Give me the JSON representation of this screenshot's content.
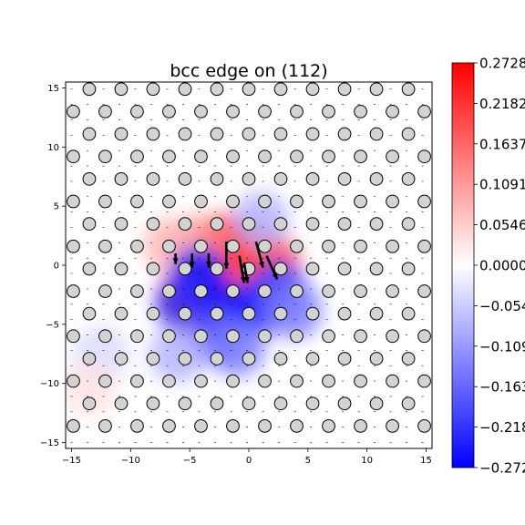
{
  "chart_data": {
    "type": "heatmap",
    "title": "bcc edge on (112)",
    "xlabel": "",
    "ylabel": "",
    "xlim": [
      -15.5,
      15.5
    ],
    "ylim": [
      -15.5,
      15.5
    ],
    "xticks": [
      "−15",
      "−10",
      "−5",
      "0",
      "5",
      "10",
      "15"
    ],
    "xtick_values": [
      -15,
      -10,
      -5,
      0,
      5,
      10,
      15
    ],
    "yticks": [
      "15",
      "10",
      "5",
      "0",
      "−5",
      "−10",
      "−15"
    ],
    "ytick_values": [
      15,
      10,
      5,
      0,
      -5,
      -10,
      -15
    ],
    "colorbar": {
      "colormap": "bwr",
      "min": -0.2728,
      "max": 0.2728,
      "tick_labels": [
        "0.2728",
        "0.2182",
        "0.1637",
        "0.1091",
        "0.0546",
        "0.0000",
        "−0.0546",
        "−0.1091",
        "−0.1637",
        "−0.2182",
        "−0.2728"
      ],
      "tick_values": [
        0.2728,
        0.2182,
        0.1637,
        0.1091,
        0.0546,
        0.0,
        -0.0546,
        -0.1091,
        -0.1637,
        -0.2182,
        -0.2728
      ]
    },
    "atoms": {
      "description": "triangular lattice of atom sites drawn as grey circles",
      "row_spacing": 1.9,
      "column_spacing": 2.7,
      "row_offset_per_row": 1.35,
      "fill": "#d3d3d3",
      "edge": "#000000"
    },
    "displacement_field": [
      {
        "x": -1.8,
        "y": 2.0,
        "value": 0.27
      },
      {
        "x": 0.5,
        "y": 1.2,
        "value": 0.24
      },
      {
        "x": 2.0,
        "y": 0.2,
        "value": 0.18
      },
      {
        "x": -0.8,
        "y": -1.0,
        "value": 0.2
      },
      {
        "x": -4.2,
        "y": 1.8,
        "value": 0.12
      },
      {
        "x": -6.5,
        "y": 1.6,
        "value": 0.08
      },
      {
        "x": -4.8,
        "y": -4.0,
        "value": 0.27
      },
      {
        "x": -5.4,
        "y": -2.8,
        "value": 0.22
      },
      {
        "x": -4.3,
        "y": -0.8,
        "value": -0.27
      },
      {
        "x": -5.5,
        "y": -3.3,
        "value": -0.22
      },
      {
        "x": -2.0,
        "y": -3.8,
        "value": -0.27
      },
      {
        "x": 0.8,
        "y": -3.5,
        "value": -0.25
      },
      {
        "x": 2.5,
        "y": -2.0,
        "value": -0.2
      },
      {
        "x": -3.0,
        "y": -6.0,
        "value": -0.18
      },
      {
        "x": -1.0,
        "y": -7.0,
        "value": -0.14
      },
      {
        "x": 3.8,
        "y": -3.8,
        "value": -0.14
      },
      {
        "x": -6.0,
        "y": -7.5,
        "value": -0.08
      },
      {
        "x": 1.0,
        "y": 3.8,
        "value": -0.08
      },
      {
        "x": -12.5,
        "y": -7.5,
        "value": -0.04
      },
      {
        "x": -13.5,
        "y": -10.5,
        "value": 0.03
      }
    ],
    "arrows": [
      {
        "x": -1.9,
        "y": 2.0,
        "dx": 0.0,
        "dy": -2.3
      },
      {
        "x": -0.8,
        "y": 0.8,
        "dx": 0.4,
        "dy": -2.3
      },
      {
        "x": 0.6,
        "y": 2.0,
        "dx": 0.6,
        "dy": -2.2
      },
      {
        "x": 1.5,
        "y": 0.8,
        "dx": 0.9,
        "dy": -2.0
      },
      {
        "x": -0.4,
        "y": 0.2,
        "dx": 0.3,
        "dy": -1.7
      },
      {
        "x": -4.8,
        "y": 1.0,
        "dx": 0.0,
        "dy": -1.2
      },
      {
        "x": -3.4,
        "y": 1.0,
        "dx": 0.0,
        "dy": -1.2
      },
      {
        "x": -6.2,
        "y": 1.0,
        "dx": 0.0,
        "dy": -0.9
      }
    ]
  }
}
